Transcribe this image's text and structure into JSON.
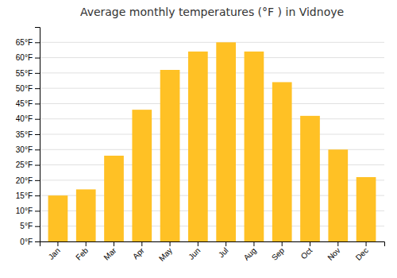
{
  "chart_data": {
    "type": "bar",
    "title": "Average monthly temperatures (°F ) in Vidnoye",
    "categories": [
      "Jan",
      "Feb",
      "Mar",
      "Apr",
      "May",
      "Jun",
      "Jul",
      "Aug",
      "Sep",
      "Oct",
      "Nov",
      "Dec"
    ],
    "values": [
      15,
      17,
      28,
      43,
      56,
      62,
      65,
      62,
      52,
      41,
      30,
      21
    ],
    "color": "#FFC125",
    "ylim": [
      0,
      70
    ],
    "yticks": [
      {
        "value": 0,
        "label": "0°F"
      },
      {
        "value": 5,
        "label": "5°F"
      },
      {
        "value": 10,
        "label": "10°F"
      },
      {
        "value": 15,
        "label": "15°F"
      },
      {
        "value": 20,
        "label": "20°F"
      },
      {
        "value": 25,
        "label": "25°F"
      },
      {
        "value": 30,
        "label": "30°F"
      },
      {
        "value": 35,
        "label": "35°F"
      },
      {
        "value": 40,
        "label": "40°F"
      },
      {
        "value": 45,
        "label": "45°F"
      },
      {
        "value": 50,
        "label": "50°F"
      },
      {
        "value": 55,
        "label": "55°F"
      },
      {
        "value": 60,
        "label": "60°F"
      },
      {
        "value": 65,
        "label": "65°F"
      }
    ],
    "grid": true
  }
}
